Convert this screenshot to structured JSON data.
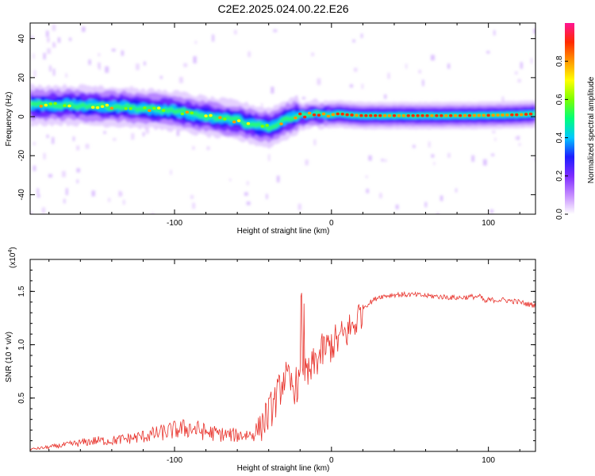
{
  "title": "C2E2.2025.024.00.22.E26",
  "chart_data": [
    {
      "type": "heatmap",
      "xlabel": "Height of straight line (km)",
      "ylabel": "Frequency (Hz)",
      "xlim": [
        -192,
        130
      ],
      "ylim": [
        -50,
        48
      ],
      "xticks": [
        -100,
        0,
        100
      ],
      "yticks": [
        -40,
        -20,
        0,
        20,
        40
      ],
      "colorbar": {
        "label": "Normalized spectral amplitude",
        "range": [
          0,
          1
        ],
        "ticks": [
          "0.0",
          "0.2",
          "0.4",
          "0.6",
          "0.8"
        ],
        "colors": [
          "#ffffff",
          "#c58bff",
          "#7d2cff",
          "#1d1dff",
          "#00c8ff",
          "#00ff7a",
          "#7dff00",
          "#ffff00",
          "#ff9900",
          "#ff2a00",
          "#ff1493"
        ]
      },
      "ridge": {
        "x": [
          -192,
          -170,
          -150,
          -130,
          -120,
          -110,
          -100,
          -90,
          -80,
          -70,
          -60,
          -50,
          -45,
          -40,
          -35,
          -30,
          -25,
          -20,
          -15,
          -10,
          -5,
          0,
          5,
          10,
          20,
          40,
          60,
          80,
          100,
          120,
          130
        ],
        "frequency": [
          6,
          6,
          5.5,
          5,
          4,
          3.5,
          3,
          1.5,
          0,
          -1,
          -2,
          -4,
          -5,
          -5.5,
          -4,
          -2,
          0,
          0.5,
          1,
          1.5,
          1,
          1,
          1.5,
          1,
          0.5,
          0.5,
          0.5,
          0.5,
          0.7,
          1,
          1.5
        ]
      }
    },
    {
      "type": "line",
      "xlabel": "Height of straight line (km)",
      "ylabel": "SNR (10 * v/v)",
      "y_multiplier": "(x10",
      "y_multiplier_exp": "4",
      "xlim": [
        -192,
        130
      ],
      "ylim": [
        0,
        1.8
      ],
      "xticks": [
        -100,
        0,
        100
      ],
      "yticks": [
        0.5,
        1.0,
        1.5
      ],
      "ytick_labels": [
        "0.5",
        "1.0",
        "1.5"
      ],
      "color": "#e8322b",
      "series": [
        {
          "x": [
            -192,
            -180,
            -170,
            -160,
            -150,
            -140,
            -130,
            -120,
            -110,
            -100,
            -90,
            -80,
            -70,
            -60,
            -50,
            -45,
            -40,
            -35,
            -30,
            -25,
            -20,
            -18,
            -15,
            -10,
            -5,
            0,
            5,
            10,
            15,
            20,
            30,
            40,
            50,
            60,
            70,
            80,
            90,
            95,
            98,
            100,
            110,
            120,
            125,
            130
          ],
          "values": [
            0.02,
            0.04,
            0.06,
            0.08,
            0.1,
            0.1,
            0.12,
            0.14,
            0.17,
            0.2,
            0.22,
            0.18,
            0.16,
            0.15,
            0.16,
            0.25,
            0.35,
            0.5,
            0.7,
            0.6,
            0.65,
            0.8,
            0.7,
            0.85,
            0.95,
            1.0,
            1.05,
            1.12,
            1.2,
            1.35,
            1.45,
            1.47,
            1.47,
            1.46,
            1.45,
            1.44,
            1.45,
            1.45,
            1.4,
            1.42,
            1.42,
            1.4,
            1.38,
            1.37
          ]
        }
      ]
    }
  ]
}
